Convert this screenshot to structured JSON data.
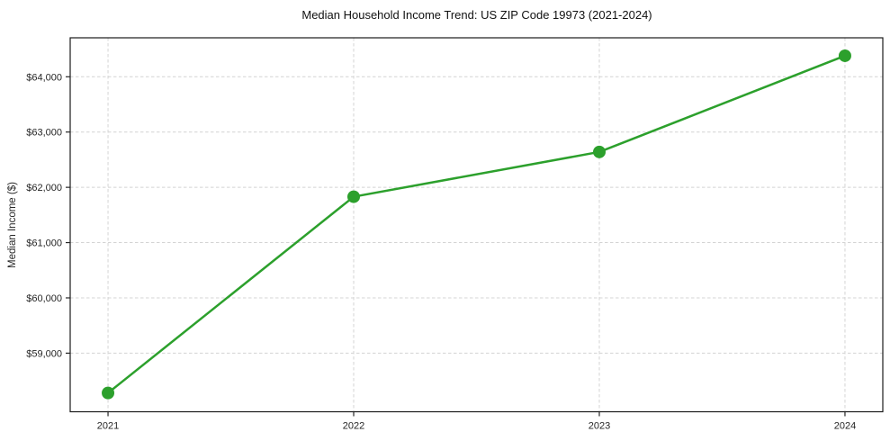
{
  "figure": {
    "title": "Median Household Income Trend: US ZIP Code 19973 (2021-2024)",
    "ylabel": "Median Income ($)"
  },
  "chart_data": {
    "type": "line",
    "title": "Median Household Income Trend: US ZIP Code 19973 (2021-2024)",
    "xlabel": "",
    "ylabel": "Median Income ($)",
    "x": [
      2021,
      2022,
      2023,
      2024
    ],
    "series": [
      {
        "name": "Median household income",
        "values": [
          58280,
          61830,
          62640,
          64380
        ],
        "color": "#2ca02c",
        "marker": "circle",
        "marker_radius": 7,
        "line_width": 2.5
      }
    ],
    "xlim": [
      2020.846,
      2024.154
    ],
    "ylim": [
      57940,
      64705
    ],
    "xticks": {
      "values": [
        2021,
        2022,
        2023,
        2024
      ],
      "labels": [
        "2021",
        "2022",
        "2023",
        "2024"
      ]
    },
    "yticks": {
      "values": [
        59000,
        60000,
        61000,
        62000,
        63000,
        64000
      ],
      "labels": [
        "$59,000",
        "$60,000",
        "$61,000",
        "$62,000",
        "$63,000",
        "$64,000"
      ]
    },
    "grid": true,
    "grid_style": "dashed",
    "legend_position": "none"
  },
  "colors": {
    "line": "#2ca02c",
    "grid": "#d4d4d4",
    "spine": "#1a1a1a",
    "tick": "#262626",
    "tick_label": "#262626",
    "title": "#111111",
    "background": "#ffffff"
  }
}
